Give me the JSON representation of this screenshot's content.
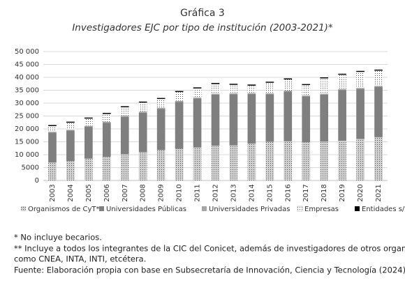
{
  "chart_data": {
    "type": "stacked_bar",
    "title": "Gráfica 3",
    "subtitle": "Investigadores EJC por tipo de institución (2003-2021)*",
    "categories": [
      "2003",
      "2004",
      "2005",
      "2006",
      "2007",
      "2008",
      "2009",
      "2010",
      "2011",
      "2012",
      "2013",
      "2014",
      "2015",
      "2016",
      "2017",
      "2018",
      "2019",
      "2020",
      "2021"
    ],
    "series": [
      {
        "name": "Organismos de CyT**",
        "color": "#d0d0d0",
        "pattern": "dots",
        "values": [
          7000,
          7500,
          8500,
          9200,
          10200,
          11000,
          11800,
          12300,
          12800,
          13500,
          13600,
          14300,
          15000,
          15200,
          14800,
          15100,
          15400,
          16100,
          16800
        ]
      },
      {
        "name": "Universidades Públicas",
        "color": "#7f7f7f",
        "values": [
          11500,
          11800,
          12300,
          13100,
          14500,
          15300,
          16000,
          18200,
          19000,
          19800,
          19800,
          19200,
          18400,
          19300,
          17800,
          18200,
          19700,
          19400,
          19500
        ]
      },
      {
        "name": "Universidades Privadas",
        "color": "#a6a6a6",
        "values": [
          400,
          400,
          400,
          400,
          400,
          400,
          400,
          400,
          400,
          400,
          400,
          400,
          400,
          400,
          400,
          400,
          400,
          400,
          400
        ]
      },
      {
        "name": "Empresas",
        "color": "#ffffff",
        "pattern": "dots",
        "values": [
          2200,
          2700,
          2800,
          3100,
          3300,
          3500,
          3400,
          3400,
          3500,
          3700,
          3300,
          2900,
          4100,
          4300,
          4000,
          5900,
          5500,
          6200,
          5900
        ]
      },
      {
        "name": "Entidades s/f. lucro",
        "color": "#000000",
        "values": [
          400,
          400,
          400,
          400,
          400,
          400,
          400,
          400,
          400,
          400,
          400,
          400,
          400,
          400,
          400,
          400,
          400,
          400,
          400
        ]
      }
    ],
    "ylim": [
      0,
      50000
    ],
    "yticks": [
      0,
      {
        "value": 5000,
        "label": "5000"
      },
      {
        "value": 10000,
        "label": "10 000"
      },
      {
        "value": 15000,
        "label": "15 000"
      },
      {
        "value": 20000,
        "label": "20 000"
      },
      {
        "value": 25000,
        "label": "25 000"
      },
      {
        "value": 30000,
        "label": "30 000"
      },
      {
        "value": 35000,
        "label": "35 000"
      },
      {
        "value": 40000,
        "label": "40 000"
      },
      {
        "value": 45000,
        "label": "45 000"
      },
      {
        "value": 50000,
        "label": "50 000"
      }
    ],
    "grid": true,
    "legend": "bottom"
  },
  "notes": [
    "* No incluye becarios.",
    "** Incluye a todos los integrantes de la CIC del Conicet, además de investigadores de otros organismos,",
    "como CNEA, INTA, INTI, etcétera.",
    "Fuente: Elaboración propia con base en Subsecretaría de Innovación, Ciencia y Tecnología (2024)."
  ]
}
